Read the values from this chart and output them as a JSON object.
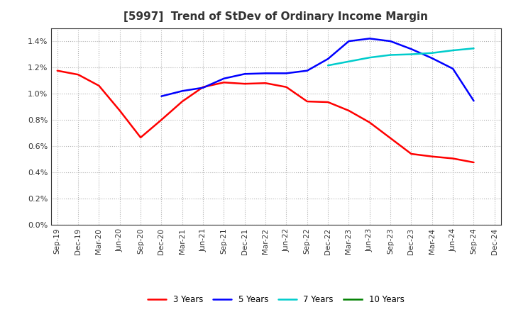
{
  "title": "[5997]  Trend of StDev of Ordinary Income Margin",
  "title_fontsize": 11,
  "title_fontweight": "bold",
  "ylim": [
    0.0,
    0.015
  ],
  "yticks": [
    0.0,
    0.002,
    0.004,
    0.006,
    0.008,
    0.01,
    0.012,
    0.014
  ],
  "background_color": "#ffffff",
  "plot_bg_color": "#ffffff",
  "grid_color": "#aaaaaa",
  "line_width": 1.8,
  "series": [
    {
      "name": "3 Years",
      "color": "#ff0000",
      "data": [
        0.01175,
        0.01145,
        0.0106,
        0.0087,
        0.00665,
        0.008,
        0.0094,
        0.0105,
        0.01085,
        0.01075,
        0.0108,
        0.0105,
        0.0094,
        0.00935,
        0.0087,
        0.0078,
        0.0066,
        0.0054,
        0.0052,
        0.00505,
        0.00475,
        null
      ]
    },
    {
      "name": "5 Years",
      "color": "#0000ff",
      "data": [
        null,
        null,
        null,
        null,
        null,
        0.0098,
        0.0102,
        0.01045,
        0.01115,
        0.0115,
        0.01155,
        0.01155,
        0.01175,
        0.01265,
        0.014,
        0.0142,
        0.014,
        0.0134,
        0.0127,
        0.0119,
        0.00945,
        null
      ]
    },
    {
      "name": "7 Years",
      "color": "#00cccc",
      "data": [
        null,
        null,
        null,
        null,
        null,
        null,
        null,
        null,
        null,
        null,
        null,
        null,
        null,
        0.01215,
        0.01245,
        0.01275,
        0.01295,
        0.013,
        0.0131,
        0.0133,
        0.01345,
        null
      ]
    },
    {
      "name": "10 Years",
      "color": "#008000",
      "data": [
        null,
        null,
        null,
        null,
        null,
        null,
        null,
        null,
        null,
        null,
        null,
        null,
        null,
        null,
        null,
        null,
        null,
        null,
        null,
        null,
        null,
        null
      ]
    }
  ],
  "xtick_labels": [
    "Sep-19",
    "Dec-19",
    "Mar-20",
    "Jun-20",
    "Sep-20",
    "Dec-20",
    "Mar-21",
    "Jun-21",
    "Sep-21",
    "Dec-21",
    "Mar-22",
    "Jun-22",
    "Sep-22",
    "Dec-22",
    "Mar-23",
    "Jun-23",
    "Sep-23",
    "Dec-23",
    "Mar-24",
    "Jun-24",
    "Sep-24",
    "Dec-24"
  ]
}
